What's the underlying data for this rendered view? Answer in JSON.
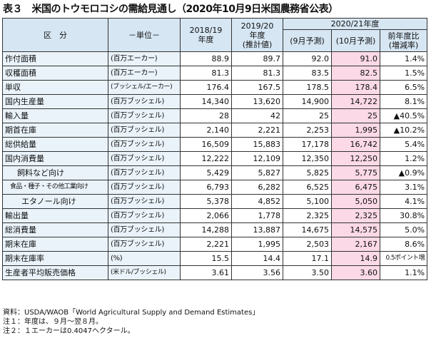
{
  "title": "表３　米国のトウモロコシの需給見通し（2020年10月9日米国農務省公表）",
  "header": {
    "category": "区　分",
    "unit": "－単位－",
    "col2018": "2018/19年度",
    "col2019": "2019/20年度(推計値)",
    "col2020_group": "2020/21年度",
    "sep": "(9月予測)",
    "oct": "(10月予測)",
    "change": "前年度比(増減率)"
  },
  "rows": [
    {
      "label": "作付面積",
      "unit": "(百万エーカー)",
      "v2018": "88.9",
      "v2019": "89.7",
      "sep": "92.0",
      "oct": "91.0",
      "chg": "1.4%"
    },
    {
      "label": "収穫面積",
      "unit": "(百万エーカー)",
      "v2018": "81.3",
      "v2019": "81.3",
      "sep": "83.5",
      "oct": "82.5",
      "chg": "1.5%"
    },
    {
      "label": "単収",
      "unit": "(ブッシェル/エーカー)",
      "v2018": "176.4",
      "v2019": "167.5",
      "sep": "178.5",
      "oct": "178.4",
      "chg": "6.5%"
    },
    {
      "label": "国内生産量",
      "unit": "(百万ブッシェル)",
      "v2018": "14,340",
      "v2019": "13,620",
      "sep": "14,900",
      "oct": "14,722",
      "chg": "8.1%"
    },
    {
      "label": "輸入量",
      "unit": "(百万ブッシェル)",
      "v2018": "28",
      "v2019": "42",
      "sep": "25",
      "oct": "25",
      "chg": "▲40.5%"
    },
    {
      "label": "期首在庫",
      "unit": "(百万ブッシェル)",
      "v2018": "2,140",
      "v2019": "2,221",
      "sep": "2,253",
      "oct": "1,995",
      "chg": "▲10.2%"
    },
    {
      "label": "総供給量",
      "unit": "(百万ブッシェル)",
      "v2018": "16,509",
      "v2019": "15,883",
      "sep": "17,178",
      "oct": "16,742",
      "chg": "5.4%"
    },
    {
      "label": "国内消費量",
      "unit": "(百万ブッシェル)",
      "v2018": "12,222",
      "v2019": "12,109",
      "sep": "12,350",
      "oct": "12,250",
      "chg": "1.2%"
    },
    {
      "label": "飼料など向け",
      "unit": "(百万ブッシェル)",
      "v2018": "5,429",
      "v2019": "5,827",
      "sep": "5,825",
      "oct": "5,775",
      "chg": "▲0.9%"
    },
    {
      "label": "食品・種子・その他工業向け",
      "unit": "(百万ブッシェル)",
      "v2018": "6,793",
      "v2019": "6,282",
      "sep": "6,525",
      "oct": "6,475",
      "chg": "3.1%"
    },
    {
      "label": "エタノール向け",
      "unit": "(百万ブッシェル)",
      "v2018": "5,378",
      "v2019": "4,852",
      "sep": "5,100",
      "oct": "5,050",
      "chg": "4.1%"
    },
    {
      "label": "輸出量",
      "unit": "(百万ブッシェル)",
      "v2018": "2,066",
      "v2019": "1,778",
      "sep": "2,325",
      "oct": "2,325",
      "chg": "30.8%"
    },
    {
      "label": "総消費量",
      "unit": "(百万ブッシェル)",
      "v2018": "14,288",
      "v2019": "13,887",
      "sep": "14,675",
      "oct": "14,575",
      "chg": "5.0%"
    },
    {
      "label": "期末在庫",
      "unit": "(百万ブッシェル)",
      "v2018": "2,221",
      "v2019": "1,995",
      "sep": "2,503",
      "oct": "2,167",
      "chg": "8.6%"
    },
    {
      "label": "期末在庫率",
      "unit": "(%)",
      "v2018": "15.5",
      "v2019": "14.4",
      "sep": "17.1",
      "oct": "14.9",
      "chg": "0.5ポイント増"
    },
    {
      "label": "生産者平均販売価格",
      "unit": "(米ドル/ブッシェル)",
      "v2018": "3.61",
      "v2019": "3.56",
      "sep": "3.50",
      "oct": "3.60",
      "chg": "1.1%"
    }
  ],
  "notes": [
    "資料：USDA/WAOB「World Agricultural Supply and Demand Estimates」",
    "注１：年度は、９月～翌８月。",
    "注２：１エーカーは0.4047ヘクタール。"
  ],
  "colors": {
    "header_bg": "#d6e6f3",
    "label_bg": "#eaf3fa",
    "highlight_bg": "#fbd9e6"
  }
}
